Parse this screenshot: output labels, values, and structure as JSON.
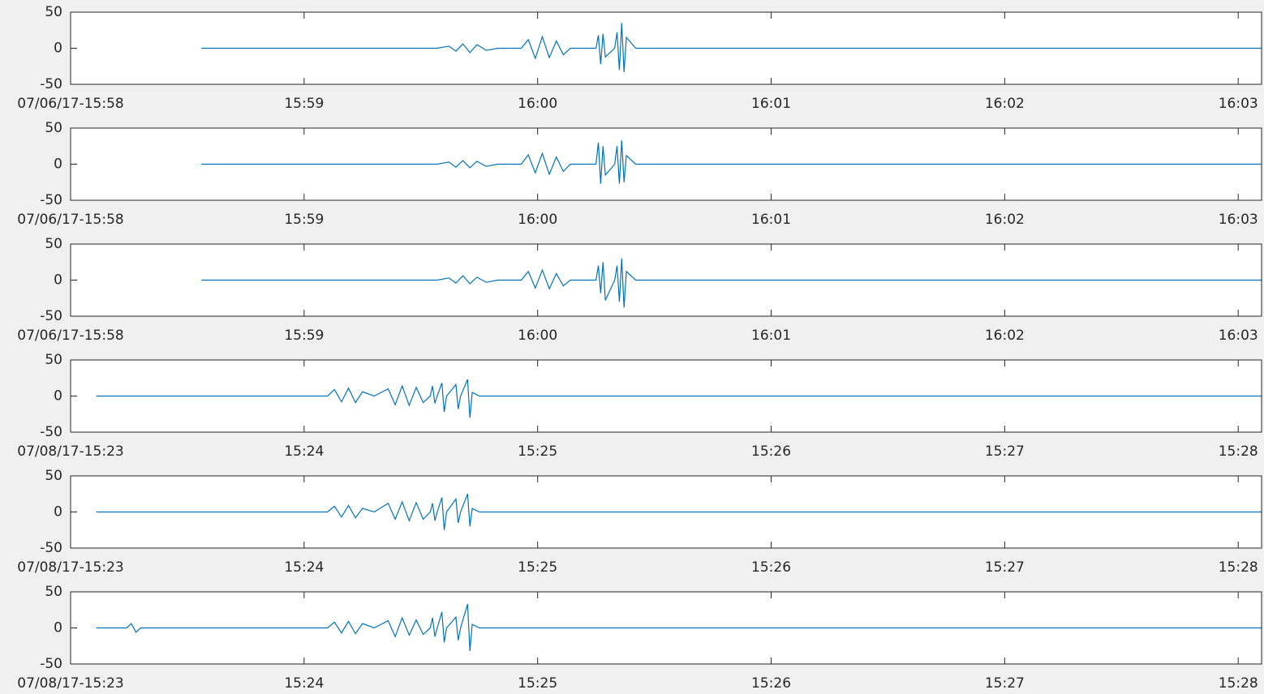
{
  "chart_data": [
    {
      "type": "line",
      "color": "#0072bd",
      "xlim": [
        958,
        963.1
      ],
      "ylim": [
        -50,
        50
      ],
      "yticks": [
        -50,
        0,
        50
      ],
      "xticks": [
        {
          "value": 958,
          "label": "07/06/17-15:58"
        },
        {
          "value": 959,
          "label": "15:59"
        },
        {
          "value": 960,
          "label": "16:00"
        },
        {
          "value": 961,
          "label": "16:01"
        },
        {
          "value": 962,
          "label": "16:02"
        },
        {
          "value": 963,
          "label": "16:03"
        }
      ],
      "x": [
        958.56,
        959.57,
        959.62,
        959.65,
        959.68,
        959.71,
        959.74,
        959.78,
        959.83,
        959.93,
        959.96,
        959.99,
        960.02,
        960.05,
        960.08,
        960.11,
        960.14,
        960.25,
        960.26,
        960.27,
        960.28,
        960.29,
        960.33,
        960.34,
        960.35,
        960.36,
        960.37,
        960.38,
        960.42,
        963.1
      ],
      "values": [
        0,
        0,
        3,
        -4,
        6,
        -6,
        5,
        -3,
        0,
        0,
        12,
        -14,
        16,
        -13,
        10,
        -9,
        0,
        0,
        18,
        -22,
        20,
        -12,
        0,
        22,
        -30,
        35,
        -33,
        15,
        0,
        0
      ]
    },
    {
      "type": "line",
      "color": "#0072bd",
      "xlim": [
        958,
        963.1
      ],
      "ylim": [
        -50,
        50
      ],
      "yticks": [
        -50,
        0,
        50
      ],
      "xticks": [
        {
          "value": 958,
          "label": "07/06/17-15:58"
        },
        {
          "value": 959,
          "label": "15:59"
        },
        {
          "value": 960,
          "label": "16:00"
        },
        {
          "value": 961,
          "label": "16:01"
        },
        {
          "value": 962,
          "label": "16:02"
        },
        {
          "value": 963,
          "label": "16:03"
        }
      ],
      "x": [
        958.56,
        959.57,
        959.62,
        959.65,
        959.68,
        959.71,
        959.74,
        959.78,
        959.83,
        959.93,
        959.96,
        959.99,
        960.02,
        960.05,
        960.08,
        960.11,
        960.14,
        960.25,
        960.26,
        960.27,
        960.28,
        960.29,
        960.33,
        960.34,
        960.35,
        960.36,
        960.37,
        960.38,
        960.42,
        963.1
      ],
      "values": [
        0,
        0,
        3,
        -4,
        5,
        -5,
        4,
        -3,
        0,
        0,
        13,
        -12,
        15,
        -14,
        10,
        -10,
        0,
        0,
        30,
        -27,
        25,
        -15,
        0,
        25,
        -27,
        33,
        -25,
        12,
        0,
        0
      ]
    },
    {
      "type": "line",
      "color": "#0072bd",
      "xlim": [
        958,
        963.1
      ],
      "ylim": [
        -50,
        50
      ],
      "yticks": [
        -50,
        0,
        50
      ],
      "xticks": [
        {
          "value": 958,
          "label": "07/06/17-15:58"
        },
        {
          "value": 959,
          "label": "15:59"
        },
        {
          "value": 960,
          "label": "16:00"
        },
        {
          "value": 961,
          "label": "16:01"
        },
        {
          "value": 962,
          "label": "16:02"
        },
        {
          "value": 963,
          "label": "16:03"
        }
      ],
      "x": [
        958.56,
        959.57,
        959.62,
        959.65,
        959.68,
        959.71,
        959.74,
        959.78,
        959.83,
        959.93,
        959.96,
        959.99,
        960.02,
        960.05,
        960.08,
        960.11,
        960.14,
        960.25,
        960.26,
        960.27,
        960.28,
        960.29,
        960.33,
        960.34,
        960.35,
        960.36,
        960.37,
        960.38,
        960.42,
        963.1
      ],
      "values": [
        0,
        0,
        3,
        -4,
        6,
        -5,
        4,
        -3,
        0,
        0,
        12,
        -11,
        14,
        -12,
        9,
        -8,
        0,
        0,
        20,
        -18,
        25,
        -28,
        0,
        20,
        -30,
        30,
        -38,
        12,
        0,
        0
      ]
    },
    {
      "type": "line",
      "color": "#0072bd",
      "xlim": [
        923,
        928.1
      ],
      "ylim": [
        -50,
        50
      ],
      "yticks": [
        -50,
        0,
        50
      ],
      "xticks": [
        {
          "value": 923,
          "label": "07/08/17-15:23"
        },
        {
          "value": 924,
          "label": "15:24"
        },
        {
          "value": 925,
          "label": "15:25"
        },
        {
          "value": 926,
          "label": "15:26"
        },
        {
          "value": 927,
          "label": "15:27"
        },
        {
          "value": 928,
          "label": "15:28"
        }
      ],
      "x": [
        923.11,
        924.1,
        924.13,
        924.16,
        924.19,
        924.22,
        924.25,
        924.3,
        924.36,
        924.39,
        924.42,
        924.45,
        924.48,
        924.51,
        924.54,
        924.55,
        924.56,
        924.57,
        924.59,
        924.6,
        924.61,
        924.65,
        924.66,
        924.67,
        924.7,
        924.71,
        924.72,
        924.75,
        928.1
      ],
      "values": [
        0,
        0,
        9,
        -8,
        11,
        -9,
        6,
        0,
        10,
        -12,
        14,
        -13,
        12,
        -9,
        0,
        14,
        -10,
        0,
        18,
        -22,
        0,
        16,
        -18,
        0,
        23,
        -30,
        5,
        0,
        0
      ]
    },
    {
      "type": "line",
      "color": "#0072bd",
      "xlim": [
        923,
        928.1
      ],
      "ylim": [
        -50,
        50
      ],
      "yticks": [
        -50,
        0,
        50
      ],
      "xticks": [
        {
          "value": 923,
          "label": "07/08/17-15:23"
        },
        {
          "value": 924,
          "label": "15:24"
        },
        {
          "value": 925,
          "label": "15:25"
        },
        {
          "value": 926,
          "label": "15:26"
        },
        {
          "value": 927,
          "label": "15:27"
        },
        {
          "value": 928,
          "label": "15:28"
        }
      ],
      "x": [
        923.11,
        924.1,
        924.13,
        924.16,
        924.19,
        924.22,
        924.25,
        924.3,
        924.36,
        924.39,
        924.42,
        924.45,
        924.48,
        924.51,
        924.54,
        924.55,
        924.56,
        924.57,
        924.59,
        924.6,
        924.61,
        924.65,
        924.66,
        924.67,
        924.7,
        924.71,
        924.72,
        924.75,
        928.1
      ],
      "values": [
        0,
        0,
        8,
        -7,
        9,
        -8,
        5,
        0,
        12,
        -10,
        14,
        -12,
        13,
        -10,
        0,
        12,
        -12,
        0,
        20,
        -25,
        0,
        18,
        -15,
        0,
        25,
        -20,
        5,
        0,
        0
      ]
    },
    {
      "type": "line",
      "color": "#0072bd",
      "xlim": [
        923,
        928.1
      ],
      "ylim": [
        -50,
        50
      ],
      "yticks": [
        -50,
        0,
        50
      ],
      "xticks": [
        {
          "value": 923,
          "label": "07/08/17-15:23"
        },
        {
          "value": 924,
          "label": "15:24"
        },
        {
          "value": 925,
          "label": "15:25"
        },
        {
          "value": 926,
          "label": "15:26"
        },
        {
          "value": 927,
          "label": "15:27"
        },
        {
          "value": 928,
          "label": "15:28"
        }
      ],
      "x": [
        923.11,
        923.24,
        923.26,
        923.28,
        923.3,
        924.1,
        924.13,
        924.16,
        924.19,
        924.22,
        924.25,
        924.3,
        924.36,
        924.39,
        924.42,
        924.45,
        924.48,
        924.51,
        924.54,
        924.55,
        924.56,
        924.57,
        924.59,
        924.6,
        924.61,
        924.65,
        924.66,
        924.67,
        924.7,
        924.71,
        924.72,
        924.75,
        928.1
      ],
      "values": [
        0,
        0,
        6,
        -6,
        0,
        0,
        8,
        -7,
        9,
        -8,
        6,
        0,
        10,
        -12,
        14,
        -10,
        11,
        -9,
        0,
        14,
        -12,
        0,
        22,
        -20,
        0,
        15,
        -17,
        0,
        33,
        -32,
        5,
        0,
        0
      ]
    }
  ]
}
